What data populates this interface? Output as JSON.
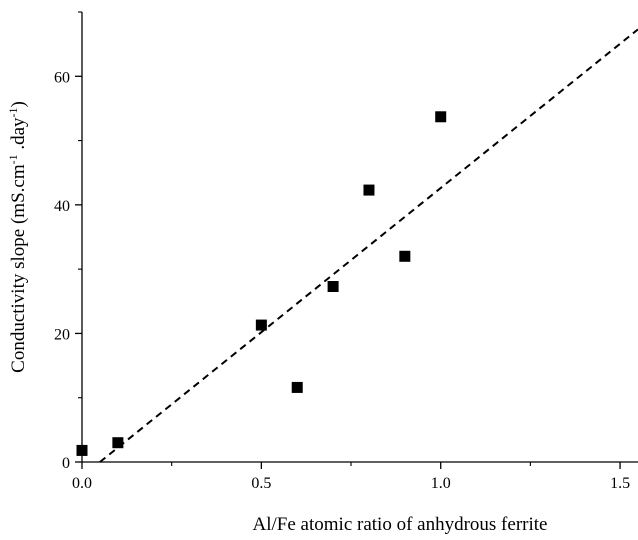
{
  "chart_data": {
    "type": "scatter",
    "xlabel": "Al/Fe atomic ratio of anhydrous ferrite",
    "ylabel": {
      "prefix": "Conductivity slope (mS.cm",
      "sup1": "-1",
      "middle": " .day",
      "sup2": "-1",
      "suffix": ")"
    },
    "xlim": [
      0.0,
      1.55
    ],
    "ylim": [
      0,
      70
    ],
    "xticks": [
      0.0,
      0.5,
      1.0,
      1.5
    ],
    "xtick_labels": [
      "0.0",
      "0.5",
      "1.0",
      "1.5"
    ],
    "yticks": [
      0,
      20,
      40,
      60
    ],
    "ytick_labels": [
      "0",
      "20",
      "40",
      "60"
    ],
    "grid": false,
    "series": [
      {
        "marker": "square",
        "color": "#000000",
        "x": [
          0.0,
          0.1,
          0.5,
          0.6,
          0.7,
          0.8,
          0.9,
          1.0
        ],
        "y": [
          1.8,
          3.0,
          21.3,
          11.6,
          27.3,
          42.3,
          32.0,
          53.7
        ]
      }
    ],
    "fit_line": {
      "style": "dashed",
      "color": "#000000",
      "x": [
        0.05,
        1.55
      ],
      "y": [
        0,
        67.3
      ]
    }
  }
}
